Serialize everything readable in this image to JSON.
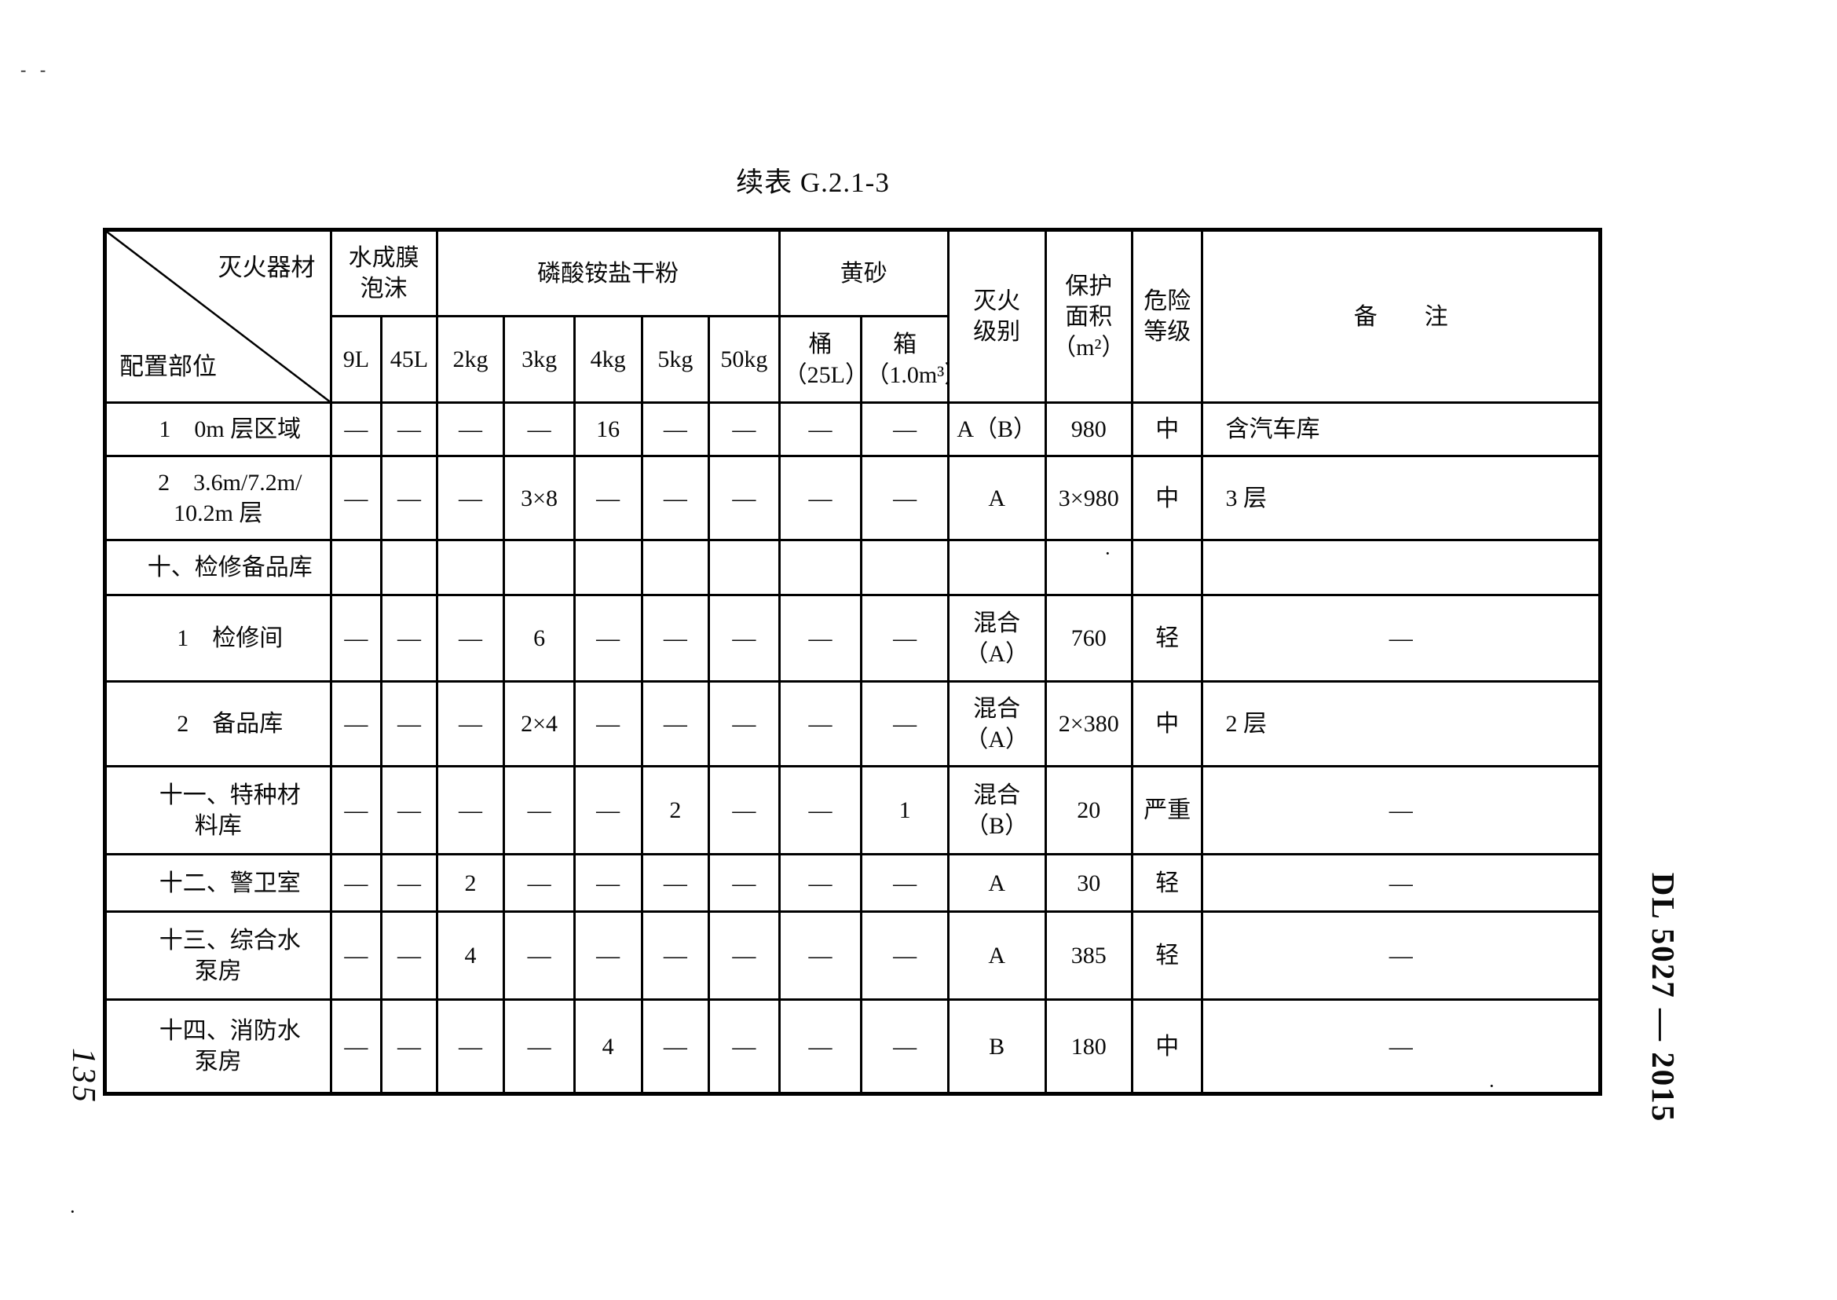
{
  "page": {
    "title": "续表 G.2.1-3",
    "page_number": "135",
    "standard_code": "DL 5027 — 2015"
  },
  "artifacts": {
    "top_left": "- -",
    "dot1": "·",
    "dot2": "·",
    "dot3": "·"
  },
  "table": {
    "corner": {
      "top_right": "灭火器材",
      "bottom_left": "配置部位"
    },
    "groups": [
      {
        "label": "水成膜\n泡沫"
      },
      {
        "label": "磷酸铵盐干粉"
      },
      {
        "label": "黄砂"
      }
    ],
    "sub_columns": [
      "9L",
      "45L",
      "2kg",
      "3kg",
      "4kg",
      "5kg",
      "50kg",
      "桶\n（25L）",
      "箱\n（1.0m³）"
    ],
    "tail_headers": [
      "灭火\n级别",
      "保护\n面积\n（m²）",
      "危险\n等级",
      "备　　注"
    ],
    "rows": [
      {
        "label": "　1　0m 层区域",
        "values": [
          "—",
          "—",
          "—",
          "—",
          "16",
          "—",
          "—",
          "—",
          "—"
        ],
        "level": "A（B）",
        "area": "980",
        "risk": "中",
        "note": "含汽车库"
      },
      {
        "label": "　2　3.6m/7.2m/\n10.2m 层",
        "values": [
          "—",
          "—",
          "—",
          "3×8",
          "—",
          "—",
          "—",
          "—",
          "—"
        ],
        "level": "A",
        "area": "3×980",
        "risk": "中",
        "note": "3 层"
      },
      {
        "label": "　十、检修备品库",
        "values": [
          "",
          "",
          "",
          "",
          "",
          "",
          "",
          "",
          ""
        ],
        "level": "",
        "area": "",
        "risk": "",
        "note": ""
      },
      {
        "label": "　1　检修间",
        "values": [
          "—",
          "—",
          "—",
          "6",
          "—",
          "—",
          "—",
          "—",
          "—"
        ],
        "level": "混合\n（A）",
        "area": "760",
        "risk": "轻",
        "note": "—"
      },
      {
        "label": "　2　备品库",
        "values": [
          "—",
          "—",
          "—",
          "2×4",
          "—",
          "—",
          "—",
          "—",
          "—"
        ],
        "level": "混合\n（A）",
        "area": "2×380",
        "risk": "中",
        "note": "2 层"
      },
      {
        "label": "　十一、特种材\n料库",
        "values": [
          "—",
          "—",
          "—",
          "—",
          "—",
          "2",
          "—",
          "—",
          "1"
        ],
        "level": "混合\n（B）",
        "area": "20",
        "risk": "严重",
        "note": "—"
      },
      {
        "label": "　十二、警卫室",
        "values": [
          "—",
          "—",
          "2",
          "—",
          "—",
          "—",
          "—",
          "—",
          "—"
        ],
        "level": "A",
        "area": "30",
        "risk": "轻",
        "note": "—"
      },
      {
        "label": "　十三、综合水\n泵房",
        "values": [
          "—",
          "—",
          "4",
          "—",
          "—",
          "—",
          "—",
          "—",
          "—"
        ],
        "level": "A",
        "area": "385",
        "risk": "轻",
        "note": "—"
      },
      {
        "label": "　十四、消防水\n泵房",
        "values": [
          "—",
          "—",
          "—",
          "—",
          "4",
          "—",
          "—",
          "—",
          "—"
        ],
        "level": "B",
        "area": "180",
        "risk": "中",
        "note": "—"
      }
    ]
  }
}
